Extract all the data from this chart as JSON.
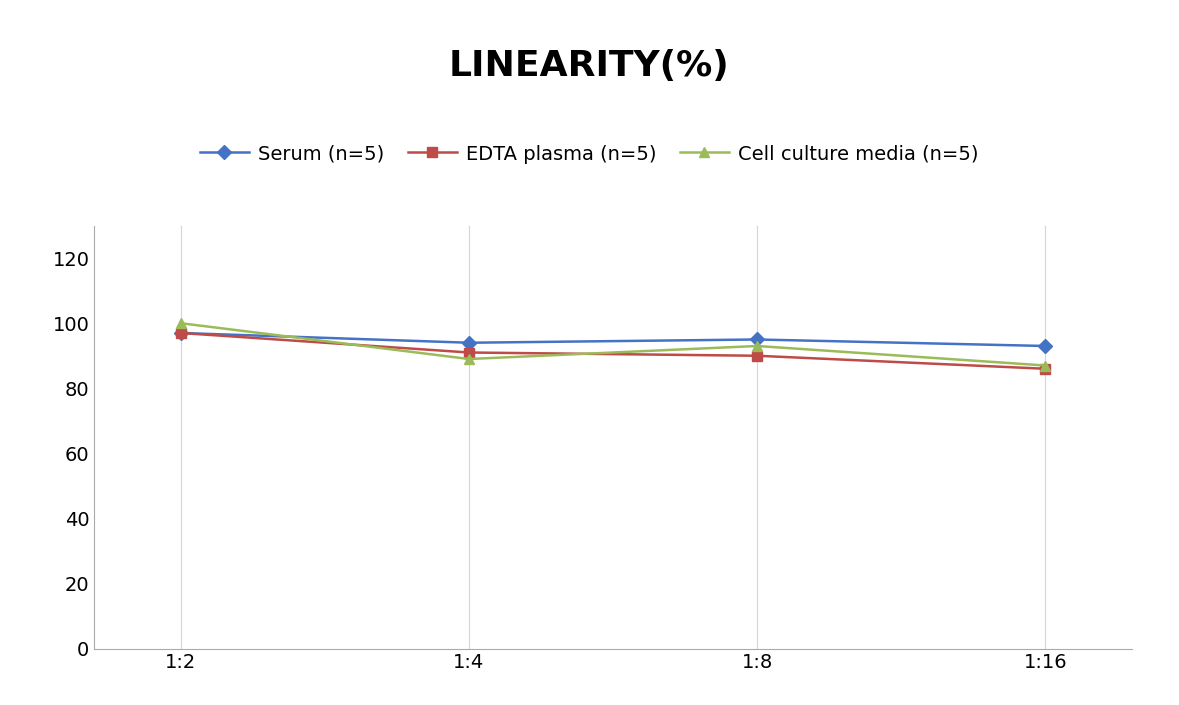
{
  "title": "LINEARITY(%)",
  "x_labels": [
    "1:2",
    "1:4",
    "1:8",
    "1:16"
  ],
  "x_positions": [
    0,
    1,
    2,
    3
  ],
  "series": [
    {
      "name": "Serum (n=5)",
      "values": [
        97,
        94,
        95,
        93
      ],
      "color": "#4472C4",
      "marker": "D",
      "linewidth": 1.8
    },
    {
      "name": "EDTA plasma (n=5)",
      "values": [
        97,
        91,
        90,
        86
      ],
      "color": "#BE4B48",
      "marker": "s",
      "linewidth": 1.8
    },
    {
      "name": "Cell culture media (n=5)",
      "values": [
        100,
        89,
        93,
        87
      ],
      "color": "#9BBB59",
      "marker": "^",
      "linewidth": 1.8
    }
  ],
  "ylim": [
    0,
    130
  ],
  "yticks": [
    0,
    20,
    40,
    60,
    80,
    100,
    120
  ],
  "title_fontsize": 26,
  "tick_fontsize": 14,
  "legend_fontsize": 14,
  "background_color": "#FFFFFF",
  "grid_color": "#D5D5D5",
  "marker_size": 7
}
